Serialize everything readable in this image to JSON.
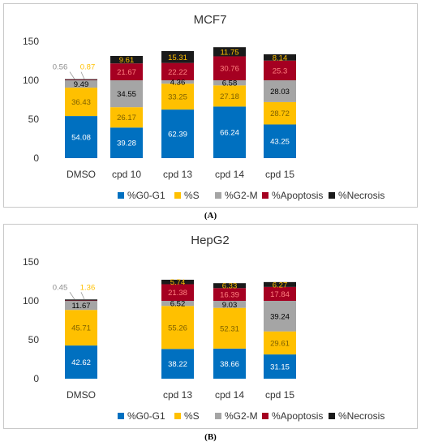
{
  "colors": {
    "g0g1": "#0070C0",
    "s": "#FFC000",
    "g2m": "#A5A5A5",
    "apoptosis": "#A50021",
    "necrosis": "#1A1A1A"
  },
  "captions": [
    "(A)",
    "(B)"
  ],
  "chart_data": [
    {
      "type": "bar",
      "stacked": true,
      "title": "MCF7",
      "categories": [
        "DMSO",
        "cpd 10",
        "cpd 13",
        "cpd 14",
        "cpd 15"
      ],
      "ylim": [
        0,
        150
      ],
      "yticks": [
        0,
        50,
        100,
        150
      ],
      "grid": false,
      "legend_position": "bottom",
      "series": [
        {
          "name": "%G0-G1",
          "values": [
            54.08,
            39.28,
            62.39,
            66.24,
            43.25
          ],
          "labels": [
            "54.08",
            "39.28",
            "62.39",
            "66.24",
            "43.25"
          ]
        },
        {
          "name": "%S",
          "values": [
            36.43,
            26.17,
            33.25,
            27.18,
            28.72
          ],
          "labels": [
            "36.43",
            "26.17",
            "33.25",
            "27.18",
            "28.72"
          ]
        },
        {
          "name": "%G2-M",
          "values": [
            9.49,
            34.55,
            4.36,
            6.58,
            28.03
          ],
          "labels": [
            "9.49",
            "34.55",
            "4.36",
            "6.58",
            "28.03"
          ]
        },
        {
          "name": "%Apoptosis",
          "values": [
            0.56,
            21.67,
            22.22,
            30.76,
            25.3
          ],
          "labels": [
            "0.56",
            "21.67",
            "22.22",
            "30.76",
            "25.3"
          ]
        },
        {
          "name": "%Necrosis",
          "values": [
            0.87,
            9.61,
            15.31,
            11.75,
            8.14
          ],
          "labels": [
            "0.87",
            "9.61",
            "15.31",
            "11.75",
            "8.14"
          ]
        }
      ]
    },
    {
      "type": "bar",
      "stacked": true,
      "title": "HepG2",
      "categories": [
        "DMSO",
        "",
        "cpd 13",
        "cpd 14",
        "cpd 15"
      ],
      "ylim": [
        0,
        150
      ],
      "yticks": [
        0,
        50,
        100,
        150
      ],
      "grid": false,
      "legend_position": "bottom",
      "series": [
        {
          "name": "%G0-G1",
          "values": [
            42.62,
            null,
            38.22,
            38.66,
            31.15
          ],
          "labels": [
            "42.62",
            "",
            "38.22",
            "38.66",
            "31.15"
          ]
        },
        {
          "name": "%S",
          "values": [
            45.71,
            null,
            55.26,
            52.31,
            29.61
          ],
          "labels": [
            "45.71",
            "",
            "55.26",
            "52.31",
            "29.61"
          ]
        },
        {
          "name": "%G2-M",
          "values": [
            11.67,
            null,
            6.52,
            9.03,
            39.24
          ],
          "labels": [
            "11.67",
            "",
            "6.52",
            "9.03",
            "39.24"
          ]
        },
        {
          "name": "%Apoptosis",
          "values": [
            0.45,
            null,
            21.38,
            16.39,
            17.84
          ],
          "labels": [
            "0.45",
            "",
            "21.38",
            "16.39",
            "17.84"
          ]
        },
        {
          "name": "%Necrosis",
          "values": [
            1.36,
            null,
            5.74,
            6.33,
            6.27
          ],
          "labels": [
            "1.36",
            "",
            "5.74",
            "6.33",
            "6.27"
          ]
        }
      ]
    }
  ]
}
